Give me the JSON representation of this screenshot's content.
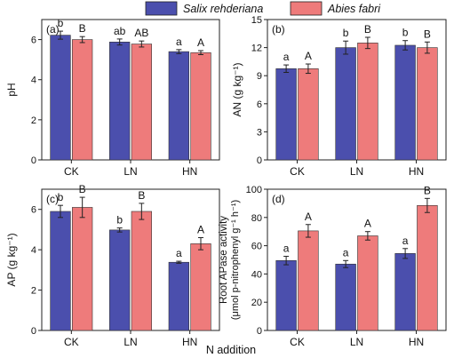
{
  "legend": {
    "entries": [
      {
        "name": "Salix rehderiana",
        "color": "#4b4fad"
      },
      {
        "name": "Abies fabri",
        "color": "#ee7b7b"
      }
    ]
  },
  "figure_xlabel": "N addition",
  "chart_data": [
    {
      "type": "bar",
      "panel_label": "(a)",
      "ylabel": "pH",
      "categories": [
        "CK",
        "LN",
        "HN"
      ],
      "ylim": [
        0,
        7
      ],
      "yticks": [
        0,
        2,
        4,
        6
      ],
      "series": [
        {
          "name": "Salix rehderiana",
          "values": [
            6.22,
            5.88,
            5.4
          ],
          "errors": [
            0.2,
            0.15,
            0.1
          ],
          "letters": [
            "b",
            "ab",
            "a"
          ]
        },
        {
          "name": "Abies fabri",
          "values": [
            6.0,
            5.78,
            5.35
          ],
          "errors": [
            0.15,
            0.15,
            0.1
          ],
          "letters": [
            "B",
            "AB",
            "A"
          ]
        }
      ]
    },
    {
      "type": "bar",
      "panel_label": "(b)",
      "ylabel": "AN (g kg⁻¹)",
      "categories": [
        "CK",
        "LN",
        "HN"
      ],
      "ylim": [
        0,
        15
      ],
      "yticks": [
        0,
        3,
        6,
        9,
        12,
        15
      ],
      "series": [
        {
          "name": "Salix rehderiana",
          "values": [
            9.75,
            12.0,
            12.25
          ],
          "errors": [
            0.4,
            0.7,
            0.5
          ],
          "letters": [
            "a",
            "b",
            "b"
          ]
        },
        {
          "name": "Abies fabri",
          "values": [
            9.75,
            12.5,
            12.0
          ],
          "errors": [
            0.5,
            0.6,
            0.6
          ],
          "letters": [
            "A",
            "B",
            "B"
          ]
        }
      ]
    },
    {
      "type": "bar",
      "panel_label": "(c)",
      "ylabel": "AP (g kg⁻¹)",
      "categories": [
        "CK",
        "LN",
        "HN"
      ],
      "ylim": [
        0,
        7
      ],
      "yticks": [
        0,
        2,
        4,
        6
      ],
      "series": [
        {
          "name": "Salix rehderiana",
          "values": [
            5.9,
            4.98,
            3.38
          ],
          "errors": [
            0.3,
            0.1,
            0.05
          ],
          "letters": [
            "b",
            "b",
            "a"
          ]
        },
        {
          "name": "Abies fabri",
          "values": [
            6.1,
            5.9,
            4.3
          ],
          "errors": [
            0.5,
            0.4,
            0.3
          ],
          "letters": [
            "B",
            "B",
            "A"
          ]
        }
      ]
    },
    {
      "type": "bar",
      "panel_label": "(d)",
      "ylabel": "Root APase activity",
      "ylabel2": "(μmol p-nitrophenyl g⁻¹ h⁻¹)",
      "categories": [
        "CK",
        "LN",
        "HN"
      ],
      "ylim": [
        0,
        100
      ],
      "yticks": [
        0,
        20,
        40,
        60,
        80,
        100
      ],
      "series": [
        {
          "name": "Salix rehderiana",
          "values": [
            49.5,
            47.0,
            54.5
          ],
          "errors": [
            3.0,
            2.5,
            3.5
          ],
          "letters": [
            "a",
            "a",
            "a"
          ]
        },
        {
          "name": "Abies fabri",
          "values": [
            70.5,
            67.0,
            88.5
          ],
          "errors": [
            4.5,
            3.0,
            5.0
          ],
          "letters": [
            "A",
            "A",
            "B"
          ]
        }
      ]
    }
  ]
}
